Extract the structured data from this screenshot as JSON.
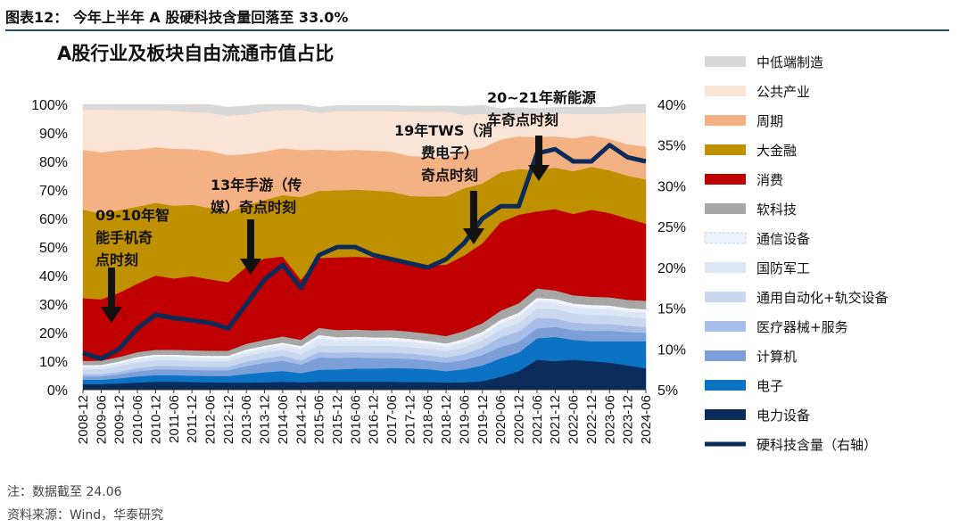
{
  "header": {
    "figure_title": "图表12： 今年上半年 A 股硬科技含量回落至 33.0%",
    "chart_title": "A股行业及板块自由流通市值占比"
  },
  "footer": {
    "note": "注：数据截至 24.06",
    "source": "资料来源：Wind，华泰研究"
  },
  "colors": {
    "header_rule": "#1f4e79",
    "line": "#0b2b5a"
  },
  "chart_data": {
    "type": "area",
    "stacked": true,
    "x": [
      "2008-12",
      "2009-06",
      "2009-12",
      "2010-06",
      "2010-12",
      "2011-06",
      "2011-12",
      "2012-06",
      "2012-12",
      "2013-06",
      "2013-12",
      "2014-06",
      "2014-12",
      "2015-06",
      "2015-12",
      "2016-06",
      "2016-12",
      "2017-06",
      "2017-12",
      "2018-06",
      "2018-12",
      "2019-06",
      "2019-12",
      "2020-06",
      "2020-12",
      "2021-06",
      "2021-12",
      "2022-06",
      "2022-12",
      "2023-06",
      "2023-12",
      "2024-06"
    ],
    "y_left_ticks": [
      "0%",
      "10%",
      "20%",
      "30%",
      "40%",
      "50%",
      "60%",
      "70%",
      "80%",
      "90%",
      "100%"
    ],
    "y_left_lim": [
      0,
      100
    ],
    "y_right_ticks": [
      "5%",
      "10%",
      "15%",
      "20%",
      "25%",
      "30%",
      "35%",
      "40%"
    ],
    "y_right_lim": [
      5,
      40
    ],
    "series": [
      {
        "name": "电力设备",
        "color": "#0b2b5a",
        "values": [
          2.0,
          2.0,
          2.2,
          2.5,
          2.8,
          2.8,
          2.7,
          2.6,
          2.5,
          2.5,
          2.6,
          2.8,
          2.6,
          2.8,
          2.8,
          2.8,
          2.8,
          2.8,
          2.7,
          2.7,
          2.5,
          2.6,
          3.0,
          4.5,
          6.5,
          10.5,
          10.0,
          10.5,
          10.0,
          9.5,
          8.5,
          7.5
        ]
      },
      {
        "name": "电子",
        "color": "#0b72c4",
        "values": [
          1.5,
          1.5,
          1.8,
          2.2,
          2.3,
          2.3,
          2.2,
          2.2,
          2.3,
          3.0,
          3.5,
          3.8,
          3.2,
          4.2,
          4.3,
          4.6,
          4.6,
          4.8,
          4.8,
          4.5,
          4.0,
          4.6,
          5.5,
          6.5,
          6.5,
          7.5,
          8.5,
          7.0,
          7.0,
          7.5,
          8.5,
          9.5
        ]
      },
      {
        "name": "计算机",
        "color": "#7d9fd8",
        "values": [
          1.2,
          1.2,
          1.4,
          1.8,
          2.0,
          2.0,
          2.0,
          2.0,
          2.0,
          2.8,
          3.3,
          3.6,
          3.0,
          4.3,
          4.0,
          3.9,
          3.7,
          3.5,
          3.3,
          3.0,
          3.0,
          3.2,
          3.7,
          4.0,
          3.8,
          3.5,
          3.5,
          3.4,
          3.6,
          3.7,
          3.2,
          3.0
        ]
      },
      {
        "name": "医疗器械+服务",
        "color": "#a7bfe8",
        "values": [
          0.8,
          0.8,
          0.9,
          1.1,
          1.2,
          1.2,
          1.2,
          1.2,
          1.2,
          1.5,
          1.6,
          1.7,
          1.5,
          1.9,
          1.9,
          1.9,
          1.9,
          1.9,
          1.9,
          1.9,
          1.8,
          2.1,
          2.6,
          3.4,
          3.6,
          3.7,
          3.0,
          2.6,
          2.5,
          2.4,
          2.2,
          2.0
        ]
      },
      {
        "name": "通用自动化+轨交设备",
        "color": "#cad8ef",
        "values": [
          1.6,
          1.7,
          1.9,
          2.0,
          2.1,
          2.1,
          2.0,
          2.0,
          2.0,
          2.1,
          2.1,
          2.1,
          2.2,
          2.3,
          2.3,
          2.3,
          2.3,
          2.3,
          2.3,
          2.3,
          2.3,
          2.4,
          2.5,
          2.8,
          3.0,
          3.2,
          3.3,
          3.2,
          3.2,
          3.1,
          3.0,
          3.0
        ]
      },
      {
        "name": "国防军工",
        "color": "#dde6f5",
        "values": [
          0.9,
          0.9,
          1.0,
          1.1,
          1.1,
          1.1,
          1.1,
          1.1,
          1.1,
          1.3,
          1.3,
          1.5,
          1.9,
          2.5,
          2.0,
          2.0,
          1.9,
          1.9,
          1.7,
          1.6,
          1.6,
          1.7,
          1.8,
          2.1,
          2.4,
          2.6,
          2.3,
          2.3,
          2.2,
          2.1,
          2.0,
          2.0
        ]
      },
      {
        "name": "通信设备",
        "color": "#eef3fb",
        "values": [
          0.6,
          0.6,
          0.7,
          0.8,
          0.8,
          0.8,
          0.8,
          0.8,
          0.8,
          0.9,
          1.0,
          1.0,
          0.9,
          1.2,
          1.1,
          1.1,
          1.1,
          1.1,
          1.1,
          1.1,
          1.0,
          1.2,
          1.2,
          1.2,
          1.2,
          1.2,
          1.2,
          1.2,
          1.2,
          1.2,
          1.2,
          1.2
        ]
      },
      {
        "name": "软科技",
        "color": "#a6a6a6",
        "values": [
          1.5,
          1.5,
          1.6,
          1.7,
          1.7,
          1.7,
          1.8,
          1.8,
          1.8,
          2.0,
          2.1,
          2.2,
          2.2,
          2.5,
          2.5,
          2.5,
          2.5,
          2.6,
          2.6,
          2.6,
          2.6,
          2.8,
          3.0,
          3.2,
          3.3,
          3.3,
          3.0,
          2.9,
          2.9,
          2.9,
          2.9,
          3.0
        ]
      },
      {
        "name": "消费",
        "color": "#c00000",
        "values": [
          22.0,
          21.5,
          22.5,
          24.0,
          26.0,
          25.0,
          26.0,
          25.0,
          24.0,
          27.0,
          28.5,
          28.0,
          21.0,
          24.5,
          25.5,
          25.5,
          25.5,
          25.0,
          24.0,
          24.0,
          25.0,
          26.5,
          28.0,
          31.0,
          31.0,
          27.0,
          28.5,
          28.5,
          30.5,
          29.5,
          28.5,
          27.0
        ]
      },
      {
        "name": "大金融",
        "color": "#bf9000",
        "values": [
          31.0,
          30.0,
          29.0,
          27.0,
          25.5,
          25.5,
          25.0,
          25.0,
          24.5,
          21.5,
          20.5,
          21.5,
          29.0,
          23.5,
          23.5,
          23.5,
          23.5,
          23.5,
          23.5,
          24.0,
          24.0,
          23.5,
          21.0,
          17.5,
          16.0,
          14.5,
          14.5,
          15.0,
          15.0,
          15.0,
          15.0,
          15.5
        ]
      },
      {
        "name": "周期",
        "color": "#f4b183",
        "values": [
          21.0,
          21.5,
          21.0,
          20.0,
          19.5,
          20.0,
          19.5,
          20.0,
          20.0,
          18.0,
          17.0,
          16.5,
          16.5,
          14.5,
          14.0,
          14.0,
          14.0,
          14.0,
          14.0,
          14.0,
          13.5,
          13.0,
          12.5,
          11.5,
          11.5,
          11.5,
          11.0,
          11.5,
          11.0,
          11.0,
          11.0,
          11.5
        ]
      },
      {
        "name": "公共产业",
        "color": "#fbe5d6",
        "values": [
          14.0,
          15.0,
          14.0,
          13.8,
          13.0,
          13.2,
          13.0,
          13.3,
          13.8,
          13.9,
          14.0,
          13.3,
          14.0,
          12.8,
          13.8,
          13.5,
          13.8,
          14.2,
          15.6,
          15.7,
          16.2,
          12.7,
          11.9,
          8.8,
          7.6,
          8.0,
          8.0,
          8.6,
          7.6,
          8.8,
          11.0,
          11.8
        ]
      },
      {
        "name": "中低端制造",
        "color": "#d9d9d9",
        "values": [
          1.9,
          1.8,
          2.0,
          2.0,
          2.0,
          2.2,
          2.7,
          3.0,
          3.0,
          3.0,
          2.8,
          2.0,
          2.0,
          2.0,
          2.0,
          2.0,
          2.0,
          2.0,
          2.0,
          2.0,
          2.0,
          3.0,
          3.0,
          2.0,
          2.5,
          2.0,
          2.2,
          2.3,
          2.3,
          2.3,
          3.0,
          3.0
        ]
      }
    ],
    "line": {
      "name": "硬科技含量（右轴）",
      "values": [
        9.5,
        8.8,
        10.0,
        12.5,
        14.2,
        13.8,
        13.5,
        13.2,
        12.5,
        15.5,
        18.5,
        20.3,
        17.5,
        21.5,
        22.5,
        22.5,
        21.5,
        21.0,
        20.5,
        20.0,
        21.0,
        23.0,
        26.0,
        27.5,
        27.5,
        34.0,
        34.5,
        33.0,
        33.0,
        35.0,
        33.5,
        33.0
      ]
    },
    "annotations": [
      {
        "lines": [
          "09-10年智",
          "能手机奇",
          "点时刻"
        ],
        "x": "2009-06",
        "arrow_tip": "2009-06"
      },
      {
        "lines": [
          "13年手游（传",
          "媒）奇点时刻"
        ],
        "x": "2013-06",
        "arrow_tip": "2013-06"
      },
      {
        "lines": [
          "19年TWS（消",
          "费电子）",
          "奇点时刻"
        ],
        "x": "2019-06",
        "arrow_tip": "2019-12"
      },
      {
        "lines": [
          "20~21年新能源",
          "车奇点时刻"
        ],
        "x": "2021-06",
        "arrow_tip": "2021-06"
      }
    ]
  }
}
